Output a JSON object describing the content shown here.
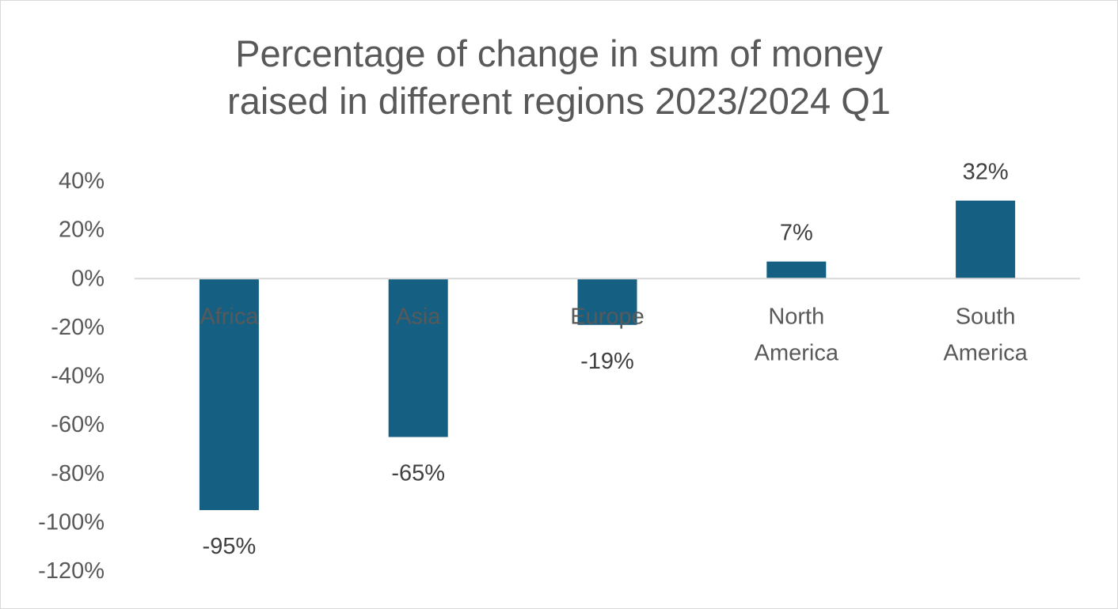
{
  "chart_data": {
    "type": "bar",
    "title_lines": [
      "Percentage of change in sum of money",
      "raised in different regions 2023/2024 Q1"
    ],
    "categories": [
      [
        "Africa"
      ],
      [
        "Asia"
      ],
      [
        "Europe"
      ],
      [
        "North",
        "America"
      ],
      [
        "South",
        "America"
      ]
    ],
    "values": [
      -95,
      -65,
      -19,
      7,
      32
    ],
    "data_labels": [
      "-95%",
      "-65%",
      "-19%",
      "7%",
      "32%"
    ],
    "ylim": [
      -120,
      40
    ],
    "yticks": [
      40,
      20,
      0,
      -20,
      -40,
      -60,
      -80,
      -100,
      -120
    ],
    "ytick_labels": [
      "40%",
      "20%",
      "0%",
      "-20%",
      "-40%",
      "-60%",
      "-80%",
      "-100%",
      "-120%"
    ],
    "bar_color": "#156082",
    "axis_color": "#d9d9d9",
    "grid": false,
    "legend": "none"
  }
}
